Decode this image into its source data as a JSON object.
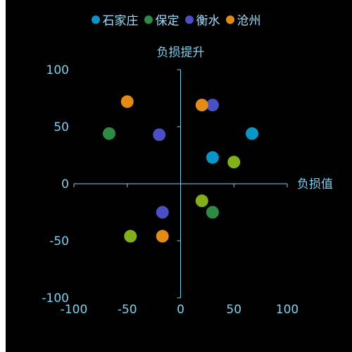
{
  "chart_data": {
    "type": "scatter",
    "xlabel": "负损值",
    "ylabel": "负损提升",
    "xlim": [
      -100,
      100
    ],
    "ylim": [
      -100,
      100
    ],
    "xticks": [
      "-100",
      "-50",
      "0",
      "50",
      "100"
    ],
    "yticks": [
      "100",
      "50",
      "0",
      "-50",
      "-100"
    ],
    "legend_position": "top-center",
    "grid": false,
    "series": [
      {
        "name": "石家庄",
        "color": "#0a95c8",
        "points": [
          [
            67,
            44
          ],
          [
            30,
            23
          ]
        ]
      },
      {
        "name": "保定",
        "color": "#2e8b45",
        "points": [
          [
            -67,
            44
          ],
          [
            30,
            -25
          ]
        ]
      },
      {
        "name": "衡水",
        "color": "#4a4fc4",
        "points": [
          [
            -20,
            43
          ],
          [
            30,
            69
          ],
          [
            -17,
            -25
          ]
        ]
      },
      {
        "name": "沧州",
        "color": "#e08c16",
        "points": [
          [
            -50,
            72
          ],
          [
            20,
            69
          ],
          [
            -17,
            -46
          ]
        ]
      },
      {
        "name": "",
        "color": "#82b01a",
        "points": [
          [
            50,
            19
          ],
          [
            20,
            -15
          ],
          [
            -47,
            -46
          ]
        ]
      }
    ]
  }
}
